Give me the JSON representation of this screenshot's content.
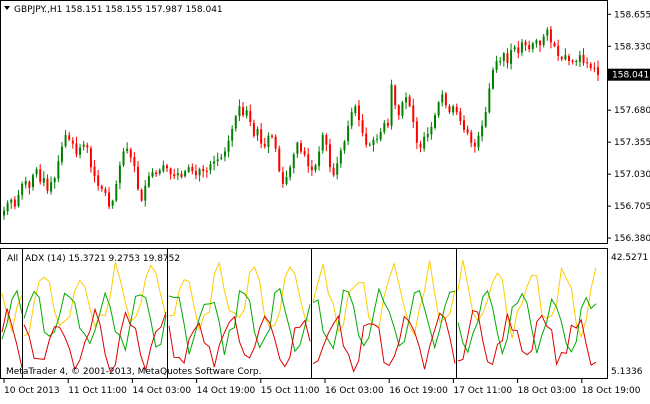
{
  "colors": {
    "background": "#ffffff",
    "frame": "#000000",
    "bull": "#008000",
    "bear": "#ff0000",
    "adx": "#ffcc00",
    "plus_di": "#00aa00",
    "minus_di": "#dd0000",
    "price_tag_bg": "#000000",
    "price_tag_fg": "#ffffff"
  },
  "header": {
    "symbol_line": "GBPJPY.,H1  158.151 158.155 157.987 158.041",
    "collapse_icon": "triangle-down-icon"
  },
  "price_axis": {
    "ticks": [
      "158.655",
      "158.330",
      "158.041",
      "157.680",
      "157.355",
      "157.030",
      "156.705",
      "156.380"
    ],
    "current_price": "158.041"
  },
  "indicator": {
    "label_all": "All",
    "label": "ADX (14) 15.3721 9.2753 19.8752",
    "axis_max": "42.5271",
    "axis_min": "5.1336"
  },
  "copyright": "MetaTrader 4, © 2001-2013, MetaQuotes Software Corp.",
  "time_axis": {
    "labels": [
      "10 Oct 2013",
      "11 Oct 11:00",
      "14 Oct 03:00",
      "14 Oct 19:00",
      "15 Oct 11:00",
      "16 Oct 03:00",
      "16 Oct 19:00",
      "17 Oct 11:00",
      "18 Oct 03:00",
      "18 Oct 19:00"
    ]
  },
  "chart_data": {
    "type": "candlestick",
    "symbol": "GBPJPY.",
    "timeframe": "H1",
    "ohlc_last": {
      "open": 158.151,
      "high": 158.155,
      "low": 157.987,
      "close": 158.041
    },
    "ylim": [
      156.33,
      158.78
    ],
    "close": [
      156.66,
      156.74,
      156.77,
      156.7,
      156.82,
      156.93,
      156.96,
      156.89,
      157.02,
      157.08,
      156.95,
      156.99,
      156.86,
      156.95,
      156.99,
      157.16,
      157.31,
      157.43,
      157.38,
      157.34,
      157.23,
      157.3,
      157.33,
      157.3,
      157.1,
      157.01,
      156.91,
      156.88,
      156.84,
      156.7,
      156.76,
      156.93,
      157.12,
      157.26,
      157.29,
      157.2,
      157.11,
      156.88,
      156.76,
      156.91,
      157.01,
      157.05,
      157.03,
      157.07,
      157.12,
      157.09,
      157.03,
      157.01,
      157.04,
      157.0,
      157.06,
      157.1,
      157.06,
      157.02,
      157.08,
      157.06,
      157.06,
      157.13,
      157.16,
      157.18,
      157.2,
      157.26,
      157.37,
      157.49,
      157.62,
      157.72,
      157.63,
      157.68,
      157.56,
      157.42,
      157.49,
      157.34,
      157.31,
      157.42,
      157.41,
      157.29,
      157.06,
      156.93,
      157.0,
      157.1,
      157.23,
      157.35,
      157.26,
      157.23,
      157.11,
      157.07,
      157.12,
      157.26,
      157.43,
      157.33,
      157.1,
      157.02,
      157.14,
      157.27,
      157.36,
      157.52,
      157.66,
      157.72,
      157.58,
      157.45,
      157.33,
      157.33,
      157.38,
      157.39,
      157.46,
      157.55,
      157.52,
      157.94,
      157.73,
      157.63,
      157.76,
      157.81,
      157.72,
      157.56,
      157.35,
      157.3,
      157.41,
      157.44,
      157.51,
      157.63,
      157.76,
      157.84,
      157.73,
      157.66,
      157.72,
      157.66,
      157.57,
      157.48,
      157.45,
      157.35,
      157.31,
      157.42,
      157.52,
      157.66,
      157.9,
      158.09,
      158.18,
      158.18,
      158.26,
      158.16,
      158.29,
      158.32,
      158.26,
      158.37,
      158.34,
      158.3,
      158.36,
      158.39,
      158.34,
      158.43,
      158.5,
      158.37,
      158.33,
      158.23,
      158.2,
      158.24,
      158.18,
      158.17,
      158.18,
      158.24,
      158.16,
      158.16,
      158.11,
      158.11,
      158.04
    ],
    "adx_values": {
      "adx": 15.3721,
      "plus_di": 9.2753,
      "minus_di": 19.8752
    },
    "adx_ylim": [
      5.1336,
      42.5271
    ]
  }
}
